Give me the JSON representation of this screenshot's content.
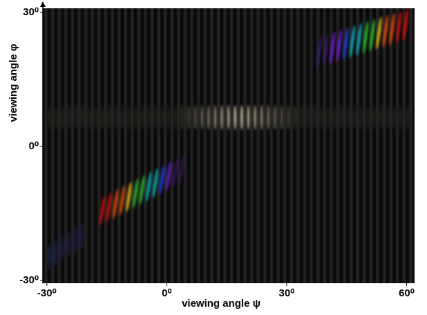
{
  "chart_data": {
    "type": "image",
    "xlabel": "viewing angle ψ",
    "ylabel": "viewing angle φ",
    "xlim": [
      -31,
      62
    ],
    "xticks": [
      {
        "value": -30,
        "label": "-30⁰"
      },
      {
        "value": 0,
        "label": "0⁰"
      },
      {
        "value": 30,
        "label": "30⁰"
      },
      {
        "value": 60,
        "label": "60⁰"
      }
    ],
    "ylim": [
      -30,
      30
    ],
    "yticks": [
      {
        "value": -30,
        "label": "-30⁰"
      },
      {
        "value": 0,
        "label": "0⁰"
      },
      {
        "value": 30,
        "label": "30⁰"
      }
    ]
  }
}
